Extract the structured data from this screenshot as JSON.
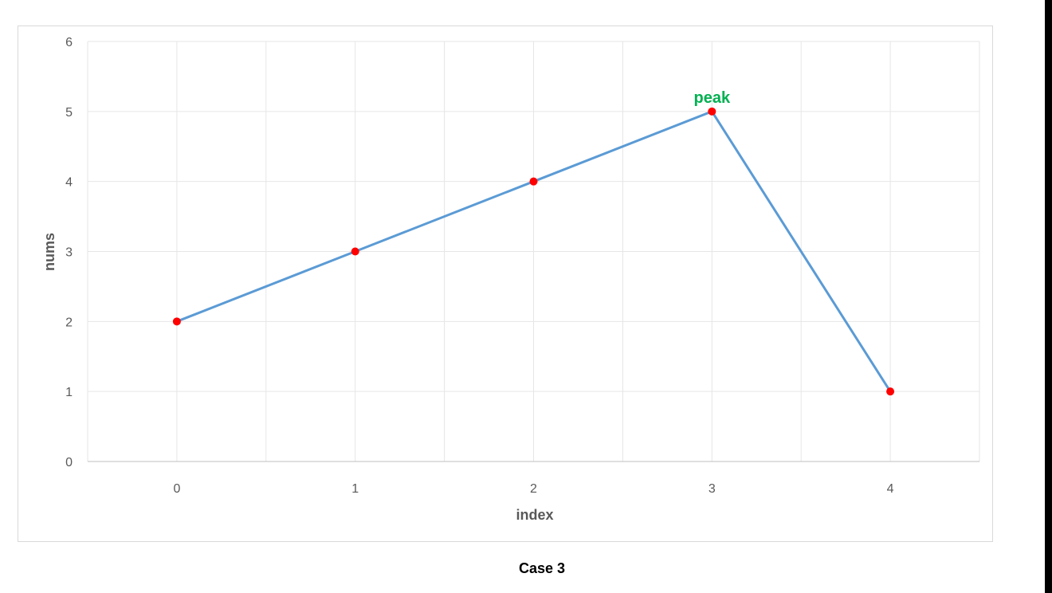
{
  "caption": "Case 3",
  "chart_data": {
    "type": "line",
    "x": [
      0,
      1,
      2,
      3,
      4
    ],
    "y": [
      2,
      3,
      4,
      5,
      1
    ],
    "xlabel": "index",
    "ylabel": "nums",
    "xticks": [
      "0",
      "1",
      "2",
      "3",
      "4"
    ],
    "yticks": [
      "0",
      "1",
      "2",
      "3",
      "4",
      "5",
      "6"
    ],
    "ylim": [
      0,
      6
    ],
    "grid": true,
    "line_color": "#5b9bd5",
    "marker_color": "#ff0000",
    "annotations": [
      {
        "text": "peak",
        "x": 3,
        "y": 5,
        "color": "#00b050"
      }
    ]
  }
}
